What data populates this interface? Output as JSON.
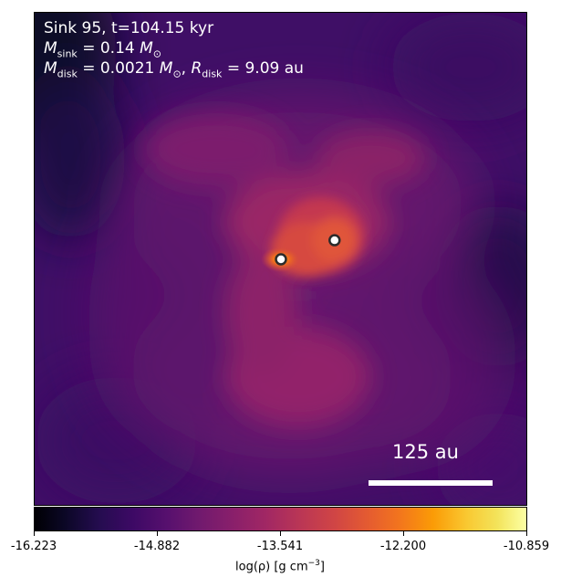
{
  "annotations": {
    "sink_line": "Sink 95, t=104.15 kyr",
    "mass_symbol": "M",
    "mass_sub": "sink",
    "mass_value": " = 0.14 ",
    "sun_symbol": "M",
    "sun_sub": "⊙",
    "disk_mass_sub": "disk",
    "disk_mass_value": " = 0.0021 ",
    "disk_radius_symbol": "R",
    "disk_radius_sub": "disk",
    "disk_radius_value": " = 9.09 au",
    "comma": ", "
  },
  "scale_bar": {
    "label": "125 au"
  },
  "colorbar": {
    "min": -16.223,
    "max": -10.859,
    "tick_labels": [
      "-16.223",
      "-14.882",
      "-13.541",
      "-12.200",
      "-10.859"
    ],
    "label_main": "log(ρ) [g cm",
    "label_exp": "−3",
    "label_close": "]",
    "colormap": "inferno"
  },
  "sinks": [
    {
      "name": "sink-95",
      "color": "#ffffff"
    },
    {
      "name": "companion-sink",
      "color": "#ffffff"
    }
  ]
}
